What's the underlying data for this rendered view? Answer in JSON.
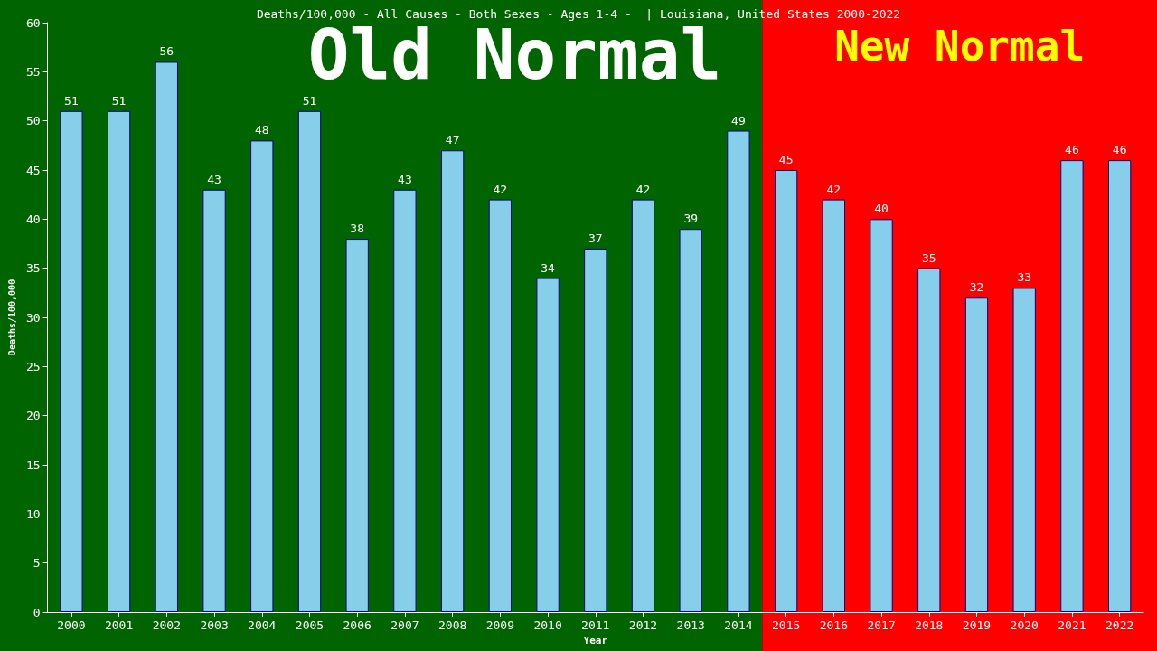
{
  "chart_data": {
    "type": "bar",
    "title": "Deaths/100,000 - All Causes - Both Sexes - Ages 1-4 -  | Louisiana, United States 2000-2022",
    "xlabel": "Year",
    "ylabel": "Deaths/100,000",
    "categories": [
      "2000",
      "2001",
      "2002",
      "2003",
      "2004",
      "2005",
      "2006",
      "2007",
      "2008",
      "2009",
      "2010",
      "2011",
      "2012",
      "2013",
      "2014",
      "2015",
      "2016",
      "2017",
      "2018",
      "2019",
      "2020",
      "2021",
      "2022"
    ],
    "values": [
      51,
      51,
      56,
      43,
      48,
      51,
      38,
      43,
      47,
      42,
      34,
      37,
      42,
      39,
      49,
      45,
      42,
      40,
      35,
      32,
      33,
      46,
      46
    ],
    "color": "#87ceeb",
    "data_labels": true,
    "ylim": [
      0,
      60
    ],
    "yticks": [
      0,
      5,
      10,
      15,
      20,
      25,
      30,
      35,
      40,
      45,
      50,
      55,
      60
    ],
    "grid": false,
    "bands": [
      {
        "axis": "x",
        "from": "2000",
        "to": "2014",
        "label": "Old Normal",
        "color": "#006400"
      },
      {
        "axis": "x",
        "from": "2015",
        "to": "2022",
        "label": "New Normal",
        "color": "#ff0000"
      }
    ]
  }
}
